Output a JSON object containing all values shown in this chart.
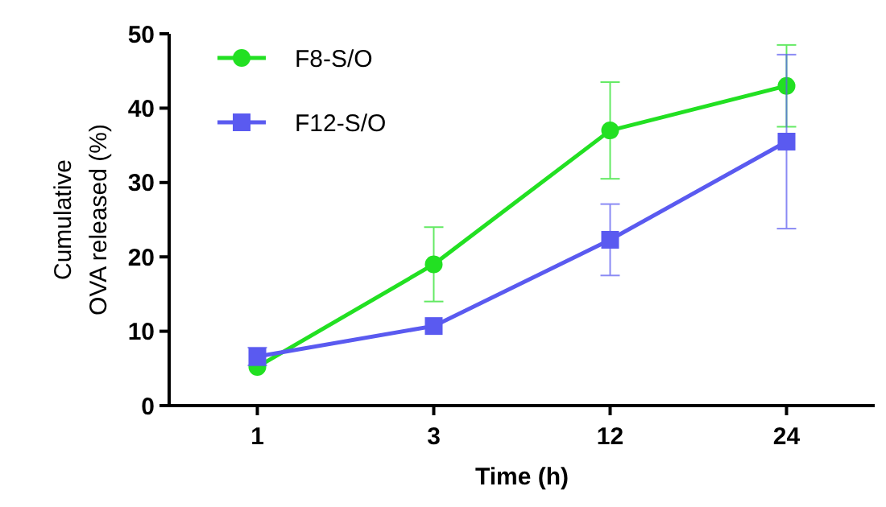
{
  "chart_data": {
    "type": "line",
    "xlabel": "Time (h)",
    "ylabel": "Cumulative\nOVA released (%)",
    "categories": [
      "1",
      "3",
      "12",
      "24"
    ],
    "ylim": [
      0,
      50
    ],
    "yticks": [
      0,
      10,
      20,
      30,
      40,
      50
    ],
    "legend": "top left",
    "grid": false,
    "series": [
      {
        "name": "F8-S/O",
        "color": "#22e022",
        "marker": "circle",
        "values": [
          5.2,
          19,
          37,
          43
        ],
        "errors": [
          null,
          5,
          6.5,
          5.5
        ]
      },
      {
        "name": "F12-S/O",
        "color": "#5a5af0",
        "marker": "square",
        "values": [
          6.6,
          10.7,
          22.3,
          35.5
        ],
        "errors": [
          1.2,
          null,
          4.8,
          11.7
        ]
      }
    ]
  }
}
